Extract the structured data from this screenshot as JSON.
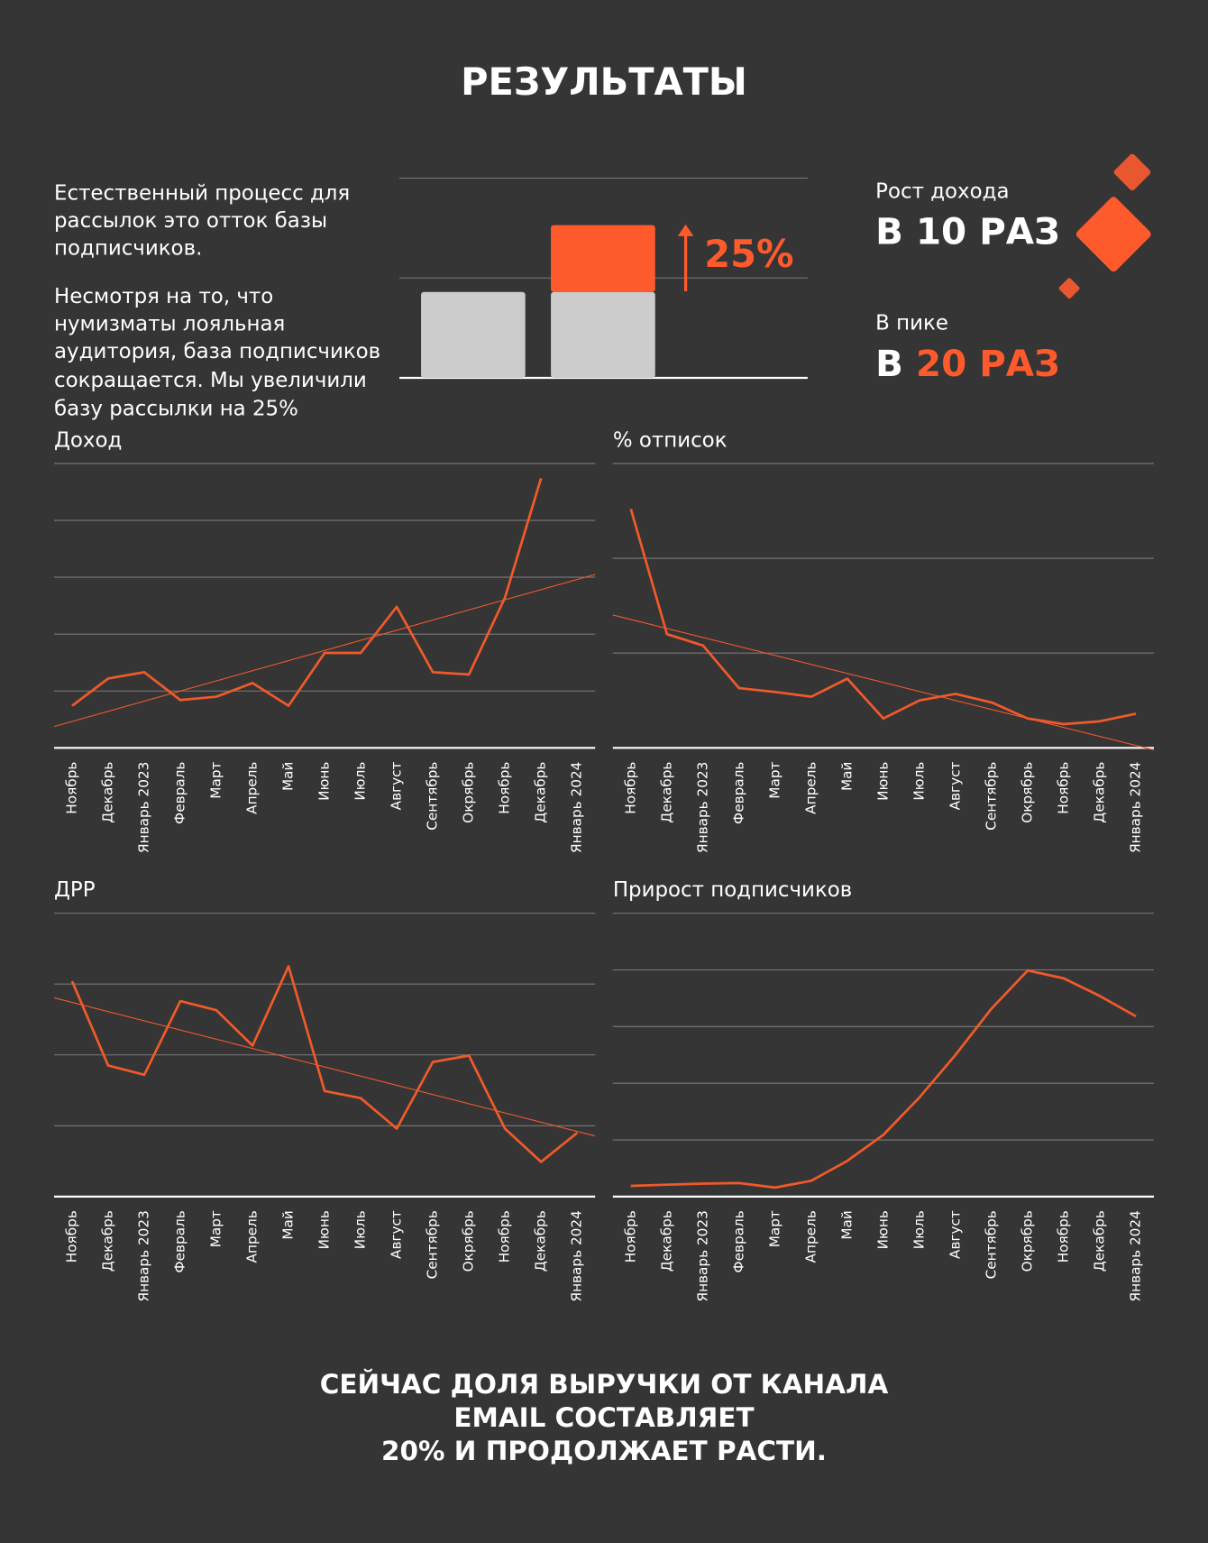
{
  "header": {
    "title": "РЕЗУЛЬТАТЫ"
  },
  "intro": {
    "paragraphs": [
      [
        "Естественный процесс для",
        "рассылок это отток базы",
        "подписчиков."
      ],
      [
        "Несмотря на то, что",
        "нумизматы лояльная",
        "аудитория, база подписчиков",
        "сокращается. Мы увеличили",
        "базу рассылки на 25%"
      ]
    ]
  },
  "stats": {
    "growth_label": "Рост дохода",
    "growth_value": "В 10 РАЗ",
    "peak_label": "В пике",
    "peak_prefix": "В",
    "peak_value": "20 РАЗ"
  },
  "chart_data": [
    {
      "type": "stacked_bar",
      "annotation": "25%",
      "series": [
        {
          "color": "#cccccc",
          "values": [
            0.86,
            0.86
          ]
        },
        {
          "color": "#ff5a2c",
          "values": [
            null,
            0.67
          ]
        }
      ],
      "ylim": [
        0,
        2
      ],
      "yticks": [
        0,
        1,
        2
      ],
      "grid": true
    },
    {
      "type": "line",
      "title": "Доход",
      "color": "#f05a2b",
      "trendline": true,
      "categories": [
        "Ноябрь",
        "Декабрь",
        "Январь 2023",
        "Февраль",
        "Март",
        "Апрель",
        "Май",
        "Июнь",
        "Июль",
        "Август",
        "Сентябрь",
        "Окрябрь",
        "Ноябрь",
        "Декабрь",
        "Январь 2024"
      ],
      "values": [
        0.74,
        1.22,
        1.33,
        0.84,
        0.9,
        1.14,
        0.74,
        1.67,
        1.67,
        2.48,
        1.33,
        1.29,
        2.64,
        4.74,
        null
      ],
      "ylim": [
        0,
        5
      ],
      "yticks": [
        0,
        1,
        2,
        3,
        4,
        5
      ],
      "grid": true
    },
    {
      "type": "line",
      "title": "% отписок",
      "color": "#f05a2b",
      "trendline": true,
      "categories": [
        "Ноябрь",
        "Декабрь",
        "Январь 2023",
        "Февраль",
        "Март",
        "Апрель",
        "Май",
        "Июнь",
        "Июль",
        "Август",
        "Сентябрь",
        "Окрябрь",
        "Ноябрь",
        "Декабрь",
        "Январь 2024"
      ],
      "values": [
        2.52,
        1.2,
        1.08,
        0.63,
        0.59,
        0.54,
        0.73,
        0.31,
        0.5,
        0.57,
        0.48,
        0.31,
        0.25,
        0.28,
        0.36
      ],
      "ylim": [
        0,
        3
      ],
      "yticks": [
        0,
        1,
        2,
        3
      ],
      "grid": true
    },
    {
      "type": "line",
      "title": "ДРР",
      "color": "#f05a2b",
      "trendline": true,
      "categories": [
        "Ноябрь",
        "Декабрь",
        "Январь 2023",
        "Февраль",
        "Март",
        "Апрель",
        "Май",
        "Июнь",
        "Июль",
        "Август",
        "Сентябрь",
        "Окрябрь",
        "Ноябрь",
        "Декабрь",
        "Январь 2024"
      ],
      "values": [
        3.04,
        1.85,
        1.72,
        2.76,
        2.63,
        2.13,
        3.25,
        1.49,
        1.39,
        0.96,
        1.9,
        1.99,
        0.96,
        0.49,
        0.9
      ],
      "ylim": [
        0,
        4
      ],
      "yticks": [
        0,
        1,
        2,
        3,
        4
      ],
      "grid": true
    },
    {
      "type": "line",
      "title": "Прирост подписчиков",
      "color": "#f05a2b",
      "trendline": false,
      "categories": [
        "Ноябрь",
        "Декабрь",
        "Январь 2023",
        "Февраль",
        "Март",
        "Апрель",
        "Май",
        "Июнь",
        "Июль",
        "Август",
        "Сентябрь",
        "Окрябрь",
        "Ноябрь",
        "Декабрь",
        "Январь 2024"
      ],
      "values": [
        0.19,
        0.21,
        0.23,
        0.24,
        0.16,
        0.28,
        0.63,
        1.09,
        1.75,
        2.5,
        3.32,
        3.99,
        3.85,
        3.54,
        3.18
      ],
      "ylim": [
        0,
        5
      ],
      "yticks": [
        0,
        1,
        2,
        3,
        4,
        5
      ],
      "grid": true
    }
  ],
  "footer": {
    "lines": [
      "СЕЙЧАС ДОЛЯ ВЫРУЧКИ ОТ КАНАЛА",
      "EMAIL СОСТАВЛЯЕТ",
      "20% И ПРОДОЛЖАЕТ РАСТИ."
    ]
  }
}
